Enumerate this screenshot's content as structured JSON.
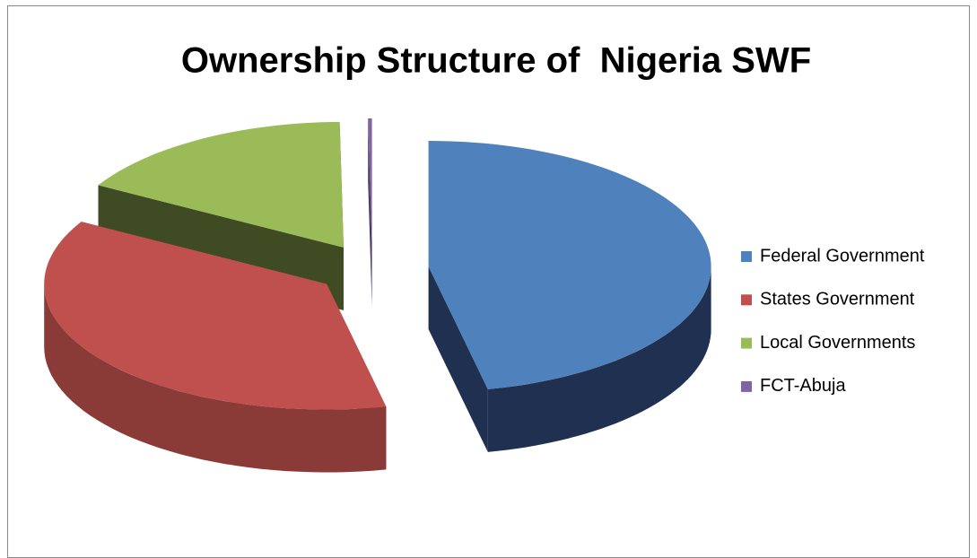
{
  "chart_data": {
    "type": "pie",
    "title": "Ownership Structure of  Nigeria SWF",
    "categories": [
      "Federal Government",
      "States Government",
      "Local Governments",
      "FCT-Abuja"
    ],
    "values": [
      46.63,
      36.63,
      16.52,
      0.22
    ],
    "colors": [
      "#4f81bd",
      "#c0504d",
      "#9bbb59",
      "#8064a2"
    ],
    "side_colors": [
      "#1f3050",
      "#8a3a37",
      "#3f4b22",
      "#4d3c63"
    ],
    "legend": "right",
    "exploded": true,
    "three_d": true
  }
}
